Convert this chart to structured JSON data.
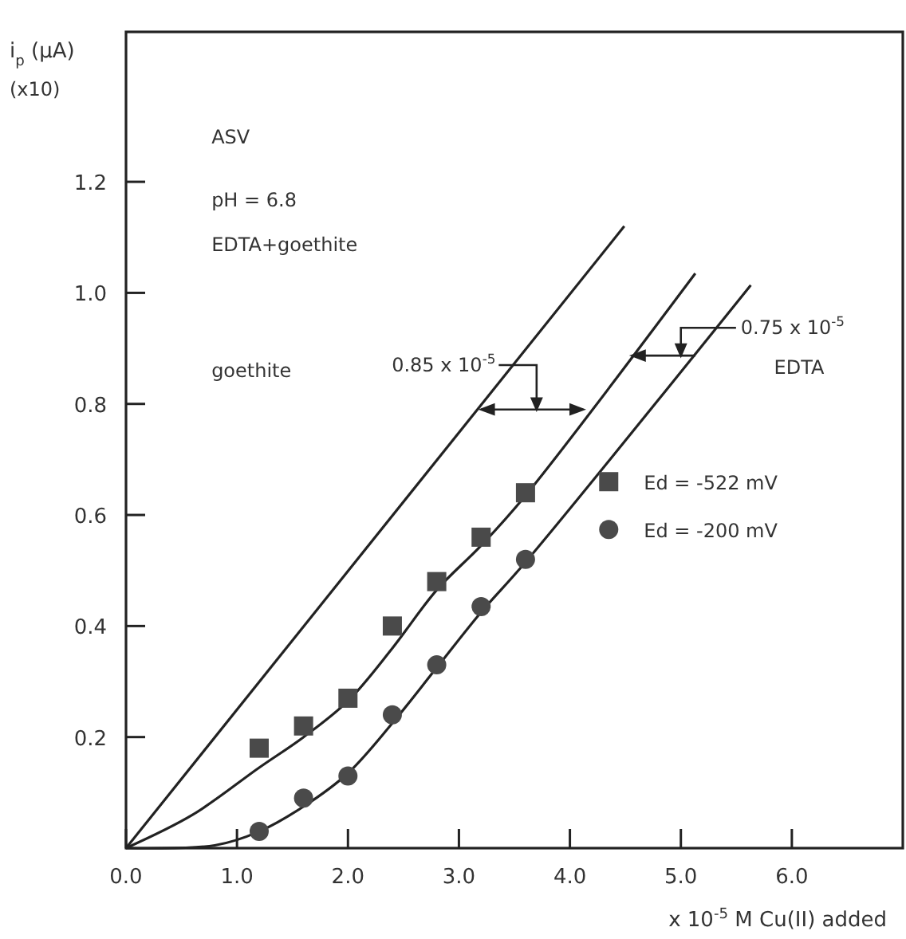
{
  "chart_data": {
    "type": "line",
    "xlabel": "x 10$^{-5}$ M Cu(II) added",
    "ylabel": "i$_{p}$ (μA)",
    "xlim": [
      0,
      7
    ],
    "ylim": [
      0,
      1.47
    ],
    "xticks": [
      {
        "value": 0,
        "label": "0.0"
      },
      {
        "value": 1,
        "label": "1.0"
      },
      {
        "value": 2,
        "label": "2.0"
      },
      {
        "value": 3,
        "label": "3.0"
      },
      {
        "value": 4,
        "label": "4.0"
      },
      {
        "value": 5,
        "label": "5.0"
      },
      {
        "value": 6,
        "label": "6.0"
      }
    ],
    "yticks": [
      0.2,
      0.4,
      0.6,
      0.8,
      {
        "value": 1,
        "label": "1.0"
      },
      1.2
    ],
    "grid": false,
    "legend": "right",
    "series": [
      {
        "color": "#222222",
        "marker": "none",
        "x": [
          0,
          4.49
        ],
        "values": [
          0,
          1.12
        ]
      },
      {
        "color": "#222222",
        "marker": "none",
        "x": [
          0,
          0.6,
          1.2,
          1.6,
          2,
          2.4,
          2.8,
          3.2,
          3.6,
          5.13
        ],
        "values": [
          0,
          0.06,
          0.145,
          0.2,
          0.265,
          0.36,
          0.465,
          0.545,
          0.635,
          1.035
        ]
      },
      {
        "color": "#222222",
        "marker": "none",
        "x": [
          0,
          0.8,
          1.2,
          1.6,
          2,
          2.4,
          2.8,
          3.2,
          3.6,
          5.63
        ],
        "values": [
          0,
          0.005,
          0.03,
          0.075,
          0.135,
          0.225,
          0.325,
          0.425,
          0.515,
          1.014
        ]
      },
      {
        "type": "scatter",
        "name": "Ed = -522 mV",
        "color": "#4a4a4a",
        "marker": "square",
        "x": [
          1.2,
          1.6,
          2,
          2.4,
          2.8,
          3.2,
          3.6
        ],
        "values": [
          0.18,
          0.22,
          0.27,
          0.4,
          0.48,
          0.56,
          0.64
        ]
      },
      {
        "type": "scatter",
        "name": "Ed = -200 mV",
        "color": "#4a4a4a",
        "marker": "circle",
        "x": [
          1.2,
          1.6,
          2,
          2.4,
          2.8,
          3.2,
          3.6
        ],
        "values": [
          0.03,
          0.09,
          0.13,
          0.24,
          0.33,
          0.435,
          0.52
        ]
      }
    ],
    "annotations": [
      "(x10)",
      "ASV",
      "pH = 6.8",
      "EDTA+goethite",
      "goethite",
      "0.85 x 10$^{-5}$",
      "0.75 x 10$^{-5}$",
      "EDTA"
    ]
  }
}
